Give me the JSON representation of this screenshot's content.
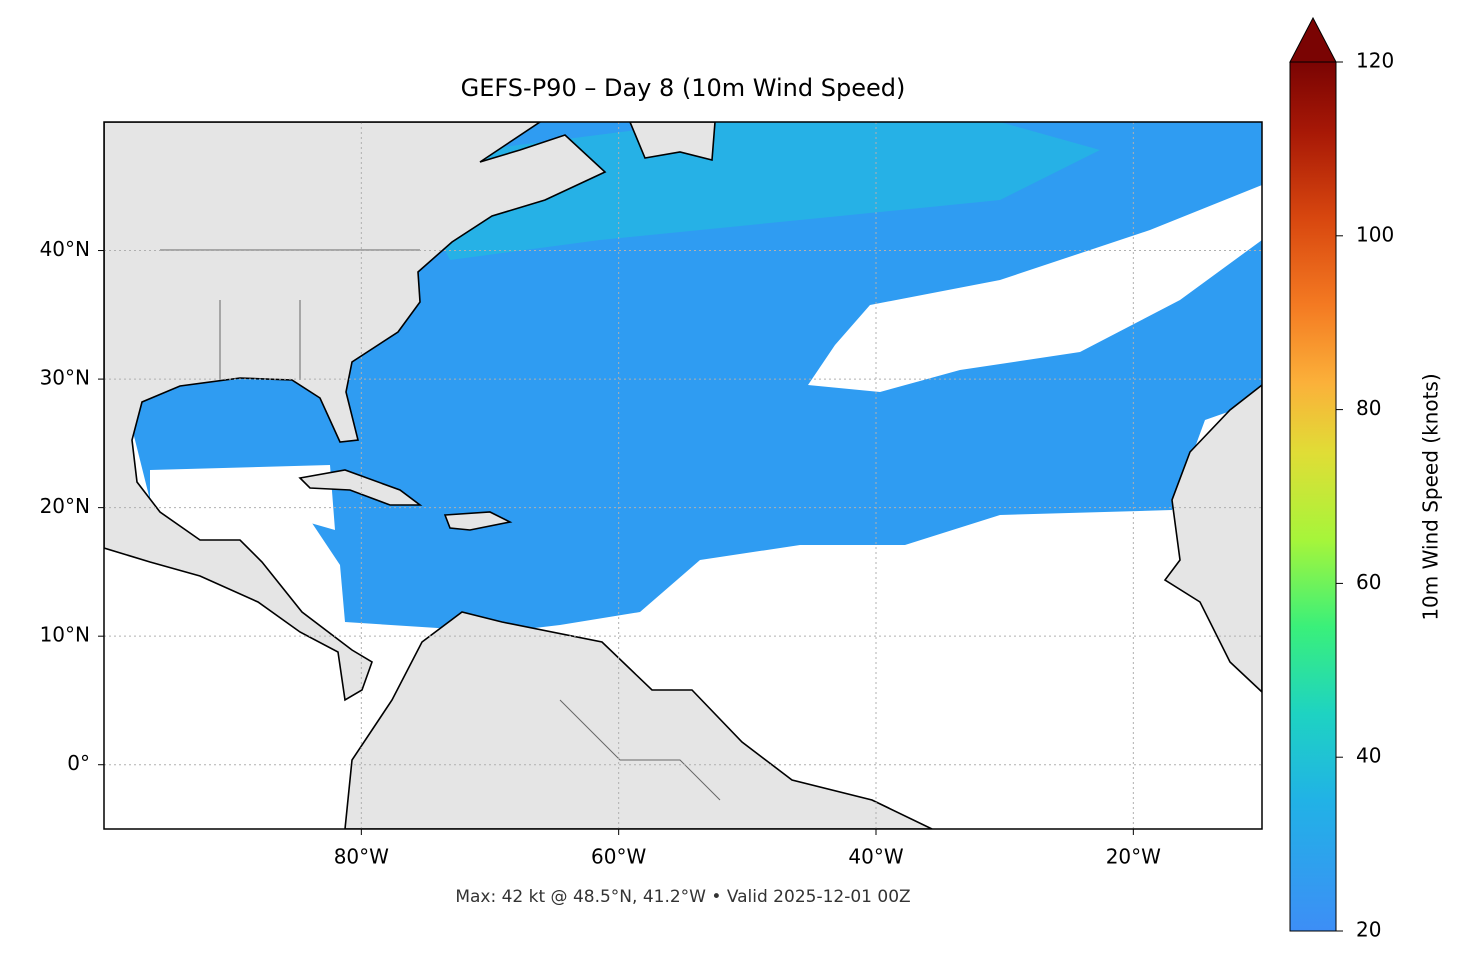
{
  "chart_data": {
    "type": "map",
    "title": "GEFS-P90 – Day 8 (10m Wind Speed)",
    "annotation": "Max: 42 kt @ 48.5°N, 41.2°W • Valid 2025-12-01 00Z",
    "xlim": [
      -100,
      -10
    ],
    "ylim": [
      -5,
      50
    ],
    "xticks": [
      {
        "value": -80,
        "label": "80°W"
      },
      {
        "value": -60,
        "label": "60°W"
      },
      {
        "value": -40,
        "label": "40°W"
      },
      {
        "value": -20,
        "label": "20°W"
      }
    ],
    "yticks": [
      {
        "value": 0,
        "label": "0°"
      },
      {
        "value": 10,
        "label": "10°N"
      },
      {
        "value": 20,
        "label": "20°N"
      },
      {
        "value": 30,
        "label": "30°N"
      },
      {
        "value": 40,
        "label": "40°N"
      }
    ],
    "grid": true,
    "colorbar": {
      "label": "10m Wind Speed (knots)",
      "lim": [
        20,
        120
      ],
      "ticks": [
        20,
        40,
        60,
        80,
        100,
        120
      ]
    }
  }
}
